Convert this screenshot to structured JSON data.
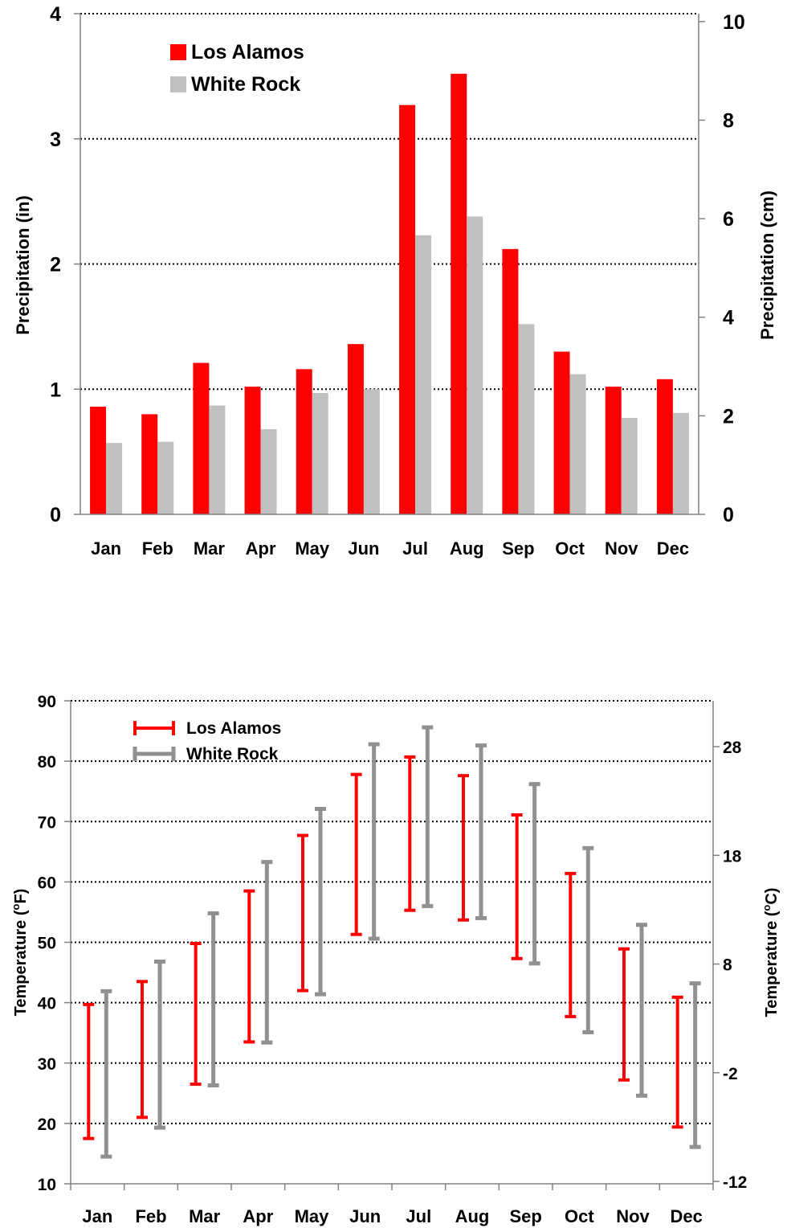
{
  "colors": {
    "los_alamos": "#ff0000",
    "white_rock_bar": "#c0c0c0",
    "white_rock_temp": "#909090",
    "grid": "#000000"
  },
  "chart_data": [
    {
      "type": "bar",
      "categories": [
        "Jan",
        "Feb",
        "Mar",
        "Apr",
        "May",
        "Jun",
        "Jul",
        "Aug",
        "Sep",
        "Oct",
        "Nov",
        "Dec"
      ],
      "series": [
        {
          "name": "Los Alamos",
          "values": [
            0.86,
            0.8,
            1.21,
            1.02,
            1.16,
            1.36,
            3.27,
            3.52,
            2.12,
            1.3,
            1.02,
            1.08
          ]
        },
        {
          "name": "White Rock",
          "values": [
            0.57,
            0.58,
            0.87,
            0.68,
            0.97,
            1.0,
            2.23,
            2.38,
            1.52,
            1.12,
            0.77,
            0.81
          ]
        }
      ],
      "ylabel": "Precipitation (in)",
      "y2label": "Precipitation (cm)",
      "ylim": [
        0,
        4
      ],
      "yticks": [
        "0",
        "1",
        "2",
        "3",
        "4"
      ],
      "y2ticks": [
        "0",
        "2",
        "4",
        "6",
        "8",
        "10"
      ],
      "legend_position": "top-left",
      "grid": "horizontal dotted"
    },
    {
      "type": "range",
      "categories": [
        "Jan",
        "Feb",
        "Mar",
        "Apr",
        "May",
        "Jun",
        "Jul",
        "Aug",
        "Sep",
        "Oct",
        "Nov",
        "Dec"
      ],
      "series": [
        {
          "name": "Los Alamos",
          "low": [
            17.5,
            21,
            26.5,
            33.5,
            42,
            51.3,
            55.3,
            53.7,
            47.3,
            37.7,
            27.2,
            19.4
          ],
          "high": [
            39.7,
            43.5,
            49.8,
            58.5,
            67.7,
            77.8,
            80.7,
            77.6,
            71.1,
            61.4,
            48.9,
            40.9
          ]
        },
        {
          "name": "White Rock",
          "low": [
            14.5,
            19.3,
            26.3,
            33.4,
            41.4,
            50.6,
            56,
            54,
            46.5,
            35.1,
            24.6,
            16.1
          ],
          "high": [
            41.9,
            46.8,
            54.8,
            63.3,
            72.1,
            82.8,
            85.6,
            82.6,
            76.2,
            65.6,
            52.9,
            43.2
          ]
        }
      ],
      "ylabel": "Temperature (°F)",
      "ylabel_base": "Temperature (",
      "ylabel_sup": "o",
      "ylabel_end": "F)",
      "y2label": "Temperature (°C)",
      "y2label_base": "Temperature (",
      "y2label_sup": "o",
      "y2label_end": "C)",
      "ylim": [
        10,
        90
      ],
      "yticks": [
        "10",
        "20",
        "30",
        "40",
        "50",
        "60",
        "70",
        "80",
        "90"
      ],
      "y2ticks": [
        "28",
        "18",
        "8",
        "-2",
        "-12"
      ],
      "legend_position": "top-left",
      "grid": "horizontal dotted"
    }
  ]
}
